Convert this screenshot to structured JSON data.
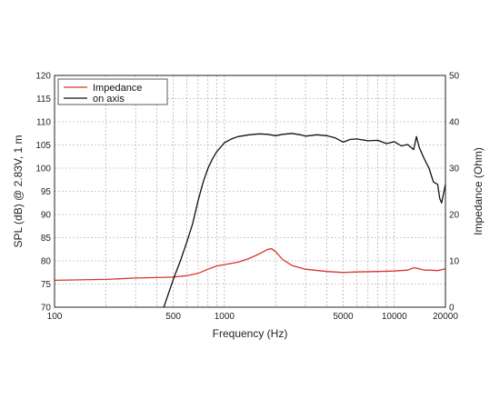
{
  "chart_data": {
    "type": "line",
    "xlabel": "Frequency (Hz)",
    "ylabel": "SPL (dB) @ 2.83V, 1 m",
    "y2label": "Impedance (Ohm)",
    "x_scale": "log",
    "xlim": [
      100,
      20000
    ],
    "ylim": [
      70,
      120
    ],
    "y2lim": [
      0,
      50
    ],
    "grid": true,
    "legend_position": "top-left",
    "x_ticks": [
      {
        "value": 100,
        "label": "100"
      },
      {
        "value": 500,
        "label": "500"
      },
      {
        "value": 1000,
        "label": "1000"
      },
      {
        "value": 5000,
        "label": "5000"
      },
      {
        "value": 10000,
        "label": "10000"
      },
      {
        "value": 20000,
        "label": "20000"
      }
    ],
    "y_ticks": [
      "70",
      "75",
      "80",
      "85",
      "90",
      "95",
      "100",
      "105",
      "110",
      "115",
      "120"
    ],
    "y2_ticks": [
      "0",
      "10",
      "20",
      "30",
      "40",
      "50"
    ],
    "series": [
      {
        "name": "Impedance",
        "color": "#d9342b",
        "axis": "right",
        "x": [
          100,
          200,
          300,
          400,
          500,
          600,
          700,
          800,
          900,
          1000,
          1200,
          1400,
          1600,
          1800,
          1900,
          2000,
          2200,
          2500,
          3000,
          4000,
          5000,
          6000,
          8000,
          10000,
          12000,
          13000,
          14000,
          15000,
          16000,
          18000,
          20000
        ],
        "y": [
          5.8,
          6.0,
          6.3,
          6.4,
          6.5,
          6.8,
          7.3,
          8.2,
          8.9,
          9.2,
          9.7,
          10.5,
          11.5,
          12.5,
          12.6,
          12.0,
          10.3,
          9.0,
          8.2,
          7.7,
          7.5,
          7.6,
          7.7,
          7.8,
          8.0,
          8.5,
          8.3,
          8.0,
          8.0,
          7.9,
          8.3
        ]
      },
      {
        "name": "on axis",
        "color": "#111111",
        "axis": "left",
        "x": [
          440,
          500,
          550,
          600,
          650,
          700,
          750,
          800,
          850,
          900,
          1000,
          1100,
          1200,
          1400,
          1600,
          1800,
          2000,
          2200,
          2500,
          2800,
          3000,
          3500,
          4000,
          4500,
          5000,
          5500,
          6000,
          7000,
          8000,
          9000,
          10000,
          11000,
          12000,
          13000,
          13500,
          14000,
          15000,
          16000,
          17000,
          18000,
          18500,
          19000,
          20000
        ],
        "y": [
          70,
          76,
          80,
          84,
          88,
          93,
          97,
          100,
          102,
          103.5,
          105.5,
          106.3,
          106.8,
          107.2,
          107.4,
          107.3,
          107.0,
          107.3,
          107.5,
          107.2,
          106.9,
          107.2,
          107.0,
          106.5,
          105.6,
          106.2,
          106.3,
          105.9,
          106.0,
          105.3,
          105.7,
          104.8,
          105.1,
          104.0,
          106.8,
          104.5,
          102.0,
          100.0,
          97.0,
          96.5,
          93.5,
          92.5,
          96.5
        ]
      }
    ]
  }
}
